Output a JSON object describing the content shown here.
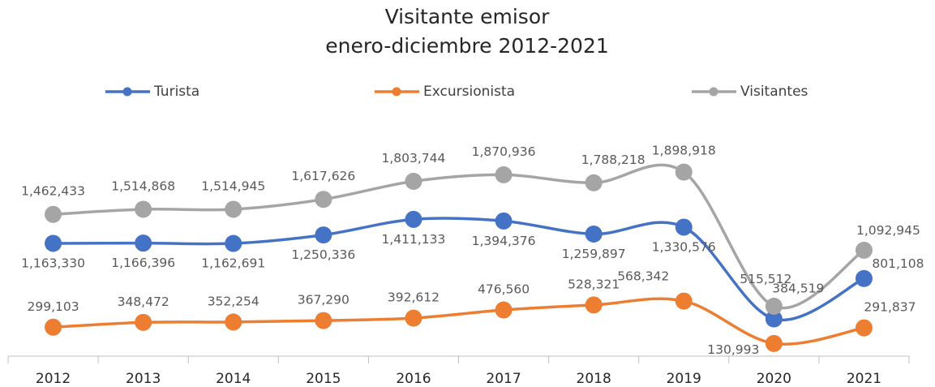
{
  "chart_data": {
    "type": "line",
    "title": "Visitante emisor",
    "subtitle": "enero-diciembre 2012-2021",
    "categories": [
      "2012",
      "2013",
      "2014",
      "2015",
      "2016",
      "2017",
      "2018",
      "2019",
      "2020",
      "2021"
    ],
    "ylim": [
      0,
      2000000
    ],
    "series": [
      {
        "name": "Turista",
        "color": "#4472c4",
        "values": [
          1163330,
          1166396,
          1162691,
          1250336,
          1411133,
          1394376,
          1259897,
          1330576,
          384519,
          801108
        ],
        "value_labels": [
          "1,163,330",
          "1,166,396",
          "1,162,691",
          "1,250,336",
          "1,411,133",
          "1,394,376",
          "1,259,897",
          "1,330,576",
          "384,519",
          "801,108"
        ]
      },
      {
        "name": "Excursionista",
        "color": "#ed7d31",
        "values": [
          299103,
          348472,
          352254,
          367290,
          392612,
          476560,
          528321,
          568342,
          130993,
          291837
        ],
        "value_labels": [
          "299,103",
          "348,472",
          "352,254",
          "367,290",
          "392,612",
          "476,560",
          "528,321",
          "568,342",
          "130,993",
          "291,837"
        ]
      },
      {
        "name": "Visitantes",
        "color": "#a5a5a5",
        "values": [
          1462433,
          1514868,
          1514945,
          1617626,
          1803744,
          1870936,
          1788218,
          1898918,
          515512,
          1092945
        ],
        "value_labels": [
          "1,462,433",
          "1,514,868",
          "1,514,945",
          "1,617,626",
          "1,803,744",
          "1,870,936",
          "1,788,218",
          "1,898,918",
          "515,512",
          "1,092,945"
        ]
      }
    ]
  }
}
